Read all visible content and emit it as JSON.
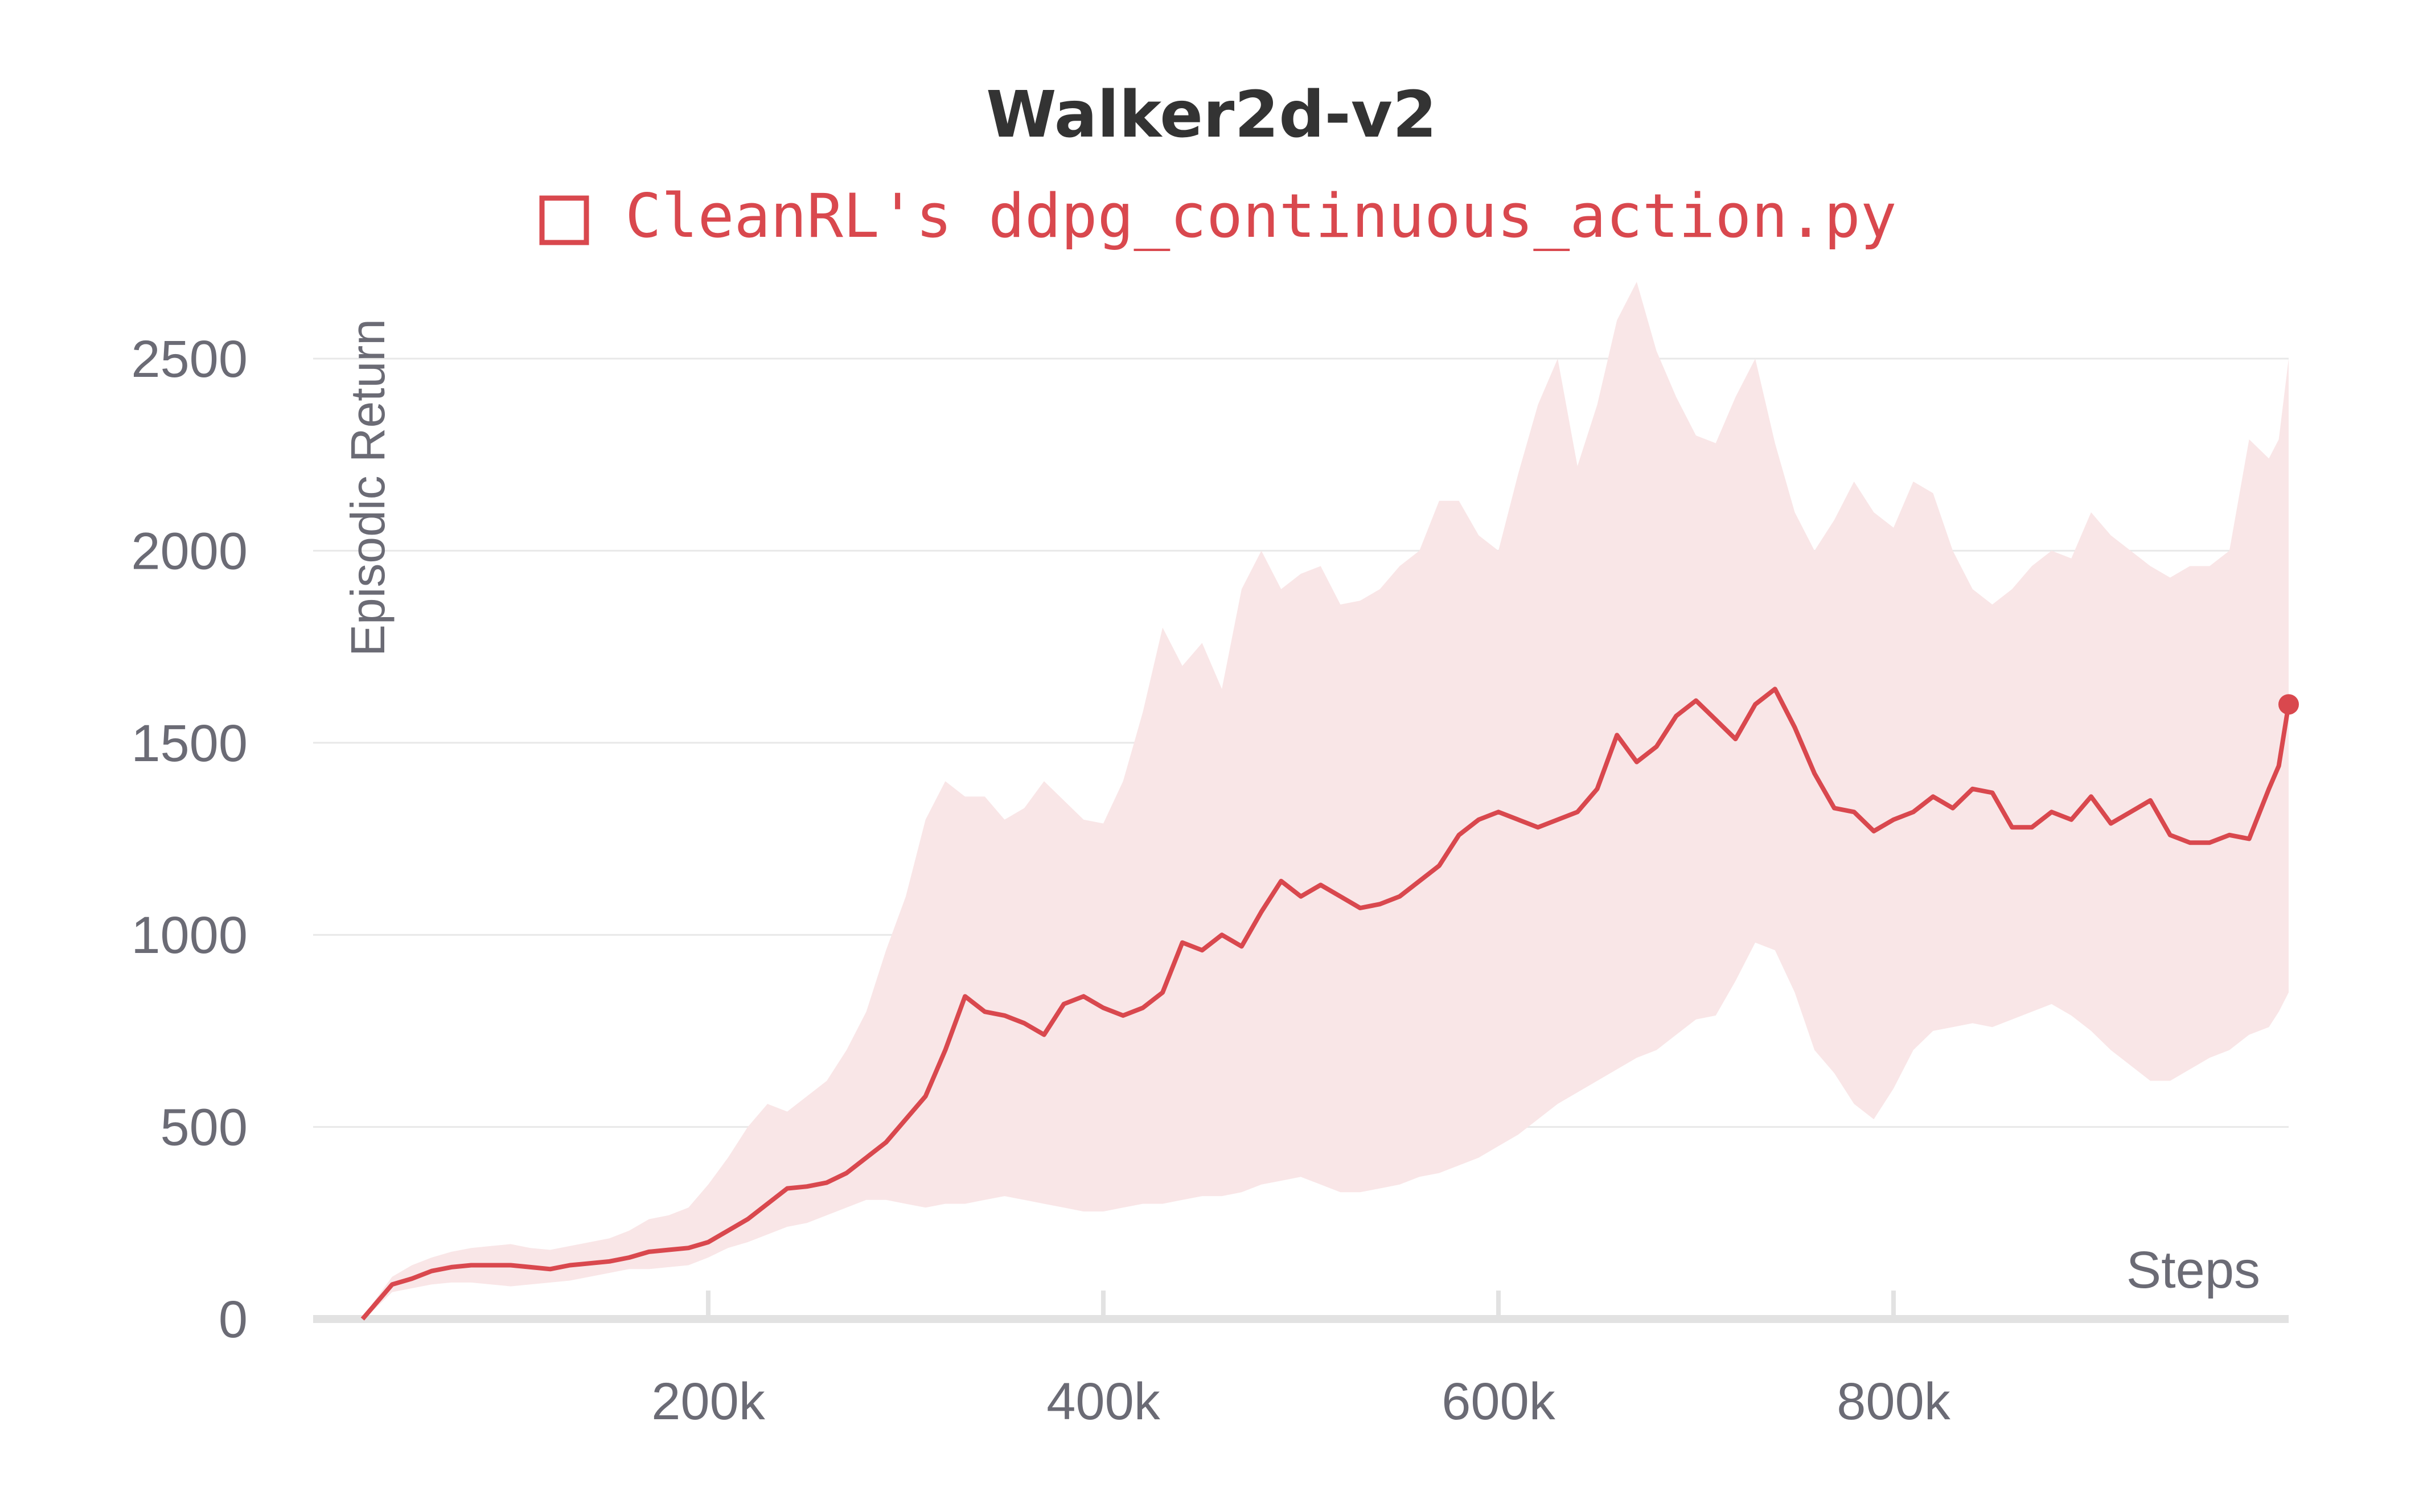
{
  "chart_data": {
    "type": "line",
    "title": "Walker2d-v2",
    "xlabel": "Steps",
    "ylabel": "Episodic Return",
    "xlim": [
      0,
      1000000
    ],
    "ylim": [
      0,
      2500
    ],
    "x_ticks": [
      200000,
      400000,
      600000,
      800000
    ],
    "x_tick_labels": [
      "200k",
      "400k",
      "600k",
      "800k"
    ],
    "y_ticks": [
      0,
      500,
      1000,
      1500,
      2000,
      2500
    ],
    "y_tick_labels": [
      "0",
      "500",
      "1000",
      "1500",
      "2000",
      "2500"
    ],
    "grid": true,
    "legend_position": "top",
    "colors": {
      "line": "#d9484e",
      "band": "#f9e6e7",
      "grid": "#e8e8e8",
      "baseline": "#e2e2e2"
    },
    "series": [
      {
        "name": "CleanRL's ddpg_continuous_action.py",
        "x": [
          25000,
          30000,
          40000,
          50000,
          60000,
          70000,
          80000,
          90000,
          100000,
          110000,
          120000,
          130000,
          140000,
          150000,
          160000,
          170000,
          180000,
          190000,
          200000,
          210000,
          220000,
          230000,
          240000,
          250000,
          260000,
          270000,
          280000,
          290000,
          300000,
          310000,
          320000,
          330000,
          340000,
          350000,
          360000,
          370000,
          380000,
          390000,
          400000,
          410000,
          420000,
          430000,
          440000,
          450000,
          460000,
          470000,
          480000,
          490000,
          500000,
          510000,
          520000,
          530000,
          540000,
          550000,
          560000,
          570000,
          580000,
          590000,
          600000,
          610000,
          620000,
          630000,
          640000,
          650000,
          660000,
          670000,
          680000,
          690000,
          700000,
          710000,
          720000,
          730000,
          740000,
          750000,
          760000,
          770000,
          780000,
          790000,
          800000,
          810000,
          820000,
          830000,
          840000,
          850000,
          860000,
          870000,
          880000,
          890000,
          900000,
          910000,
          920000,
          930000,
          940000,
          950000,
          960000,
          970000,
          980000,
          990000,
          995000,
          1000000
        ],
        "y": [
          0,
          30,
          90,
          105,
          125,
          135,
          140,
          140,
          140,
          135,
          130,
          140,
          145,
          150,
          160,
          175,
          180,
          185,
          200,
          230,
          260,
          300,
          340,
          345,
          355,
          380,
          420,
          460,
          520,
          580,
          700,
          840,
          800,
          790,
          770,
          740,
          820,
          840,
          810,
          790,
          810,
          850,
          980,
          960,
          1000,
          970,
          1060,
          1140,
          1100,
          1130,
          1100,
          1070,
          1080,
          1100,
          1140,
          1180,
          1260,
          1300,
          1320,
          1300,
          1280,
          1300,
          1320,
          1380,
          1520,
          1450,
          1490,
          1570,
          1610,
          1560,
          1510,
          1600,
          1640,
          1540,
          1420,
          1330,
          1320,
          1270,
          1300,
          1320,
          1360,
          1330,
          1380,
          1370,
          1280,
          1280,
          1320,
          1300,
          1360,
          1290,
          1320,
          1350,
          1260,
          1240,
          1240,
          1260,
          1250,
          1380,
          1440,
          1600
        ],
        "lower": [
          0,
          20,
          70,
          80,
          90,
          95,
          95,
          90,
          85,
          90,
          95,
          100,
          110,
          120,
          130,
          130,
          135,
          140,
          160,
          185,
          200,
          220,
          240,
          250,
          270,
          290,
          310,
          310,
          300,
          290,
          300,
          300,
          310,
          320,
          310,
          300,
          290,
          280,
          280,
          290,
          300,
          300,
          310,
          320,
          320,
          330,
          350,
          360,
          370,
          350,
          330,
          330,
          340,
          350,
          370,
          380,
          400,
          420,
          450,
          480,
          520,
          560,
          590,
          620,
          650,
          680,
          700,
          740,
          780,
          790,
          880,
          980,
          960,
          850,
          700,
          640,
          560,
          520,
          600,
          700,
          750,
          760,
          770,
          760,
          780,
          800,
          820,
          790,
          750,
          700,
          660,
          620,
          620,
          650,
          680,
          700,
          740,
          760,
          800,
          850
        ],
        "upper": [
          0,
          40,
          110,
          140,
          160,
          175,
          185,
          190,
          195,
          185,
          180,
          190,
          200,
          210,
          230,
          260,
          270,
          290,
          350,
          420,
          500,
          560,
          540,
          580,
          620,
          700,
          800,
          960,
          1100,
          1300,
          1400,
          1360,
          1360,
          1300,
          1330,
          1400,
          1350,
          1300,
          1290,
          1400,
          1580,
          1800,
          1700,
          1760,
          1640,
          1900,
          2000,
          1900,
          1940,
          1960,
          1860,
          1870,
          1900,
          1960,
          2000,
          2130,
          2130,
          2040,
          2000,
          2200,
          2380,
          2500,
          2220,
          2380,
          2600,
          2700,
          2520,
          2400,
          2300,
          2280,
          2400,
          2500,
          2280,
          2100,
          2000,
          2080,
          2180,
          2100,
          2060,
          2180,
          2150,
          2000,
          1900,
          1860,
          1900,
          1960,
          2000,
          1980,
          2100,
          2040,
          2000,
          1960,
          1930,
          1960,
          1960,
          2000,
          2290,
          2240,
          2290,
          2500
        ]
      }
    ]
  }
}
